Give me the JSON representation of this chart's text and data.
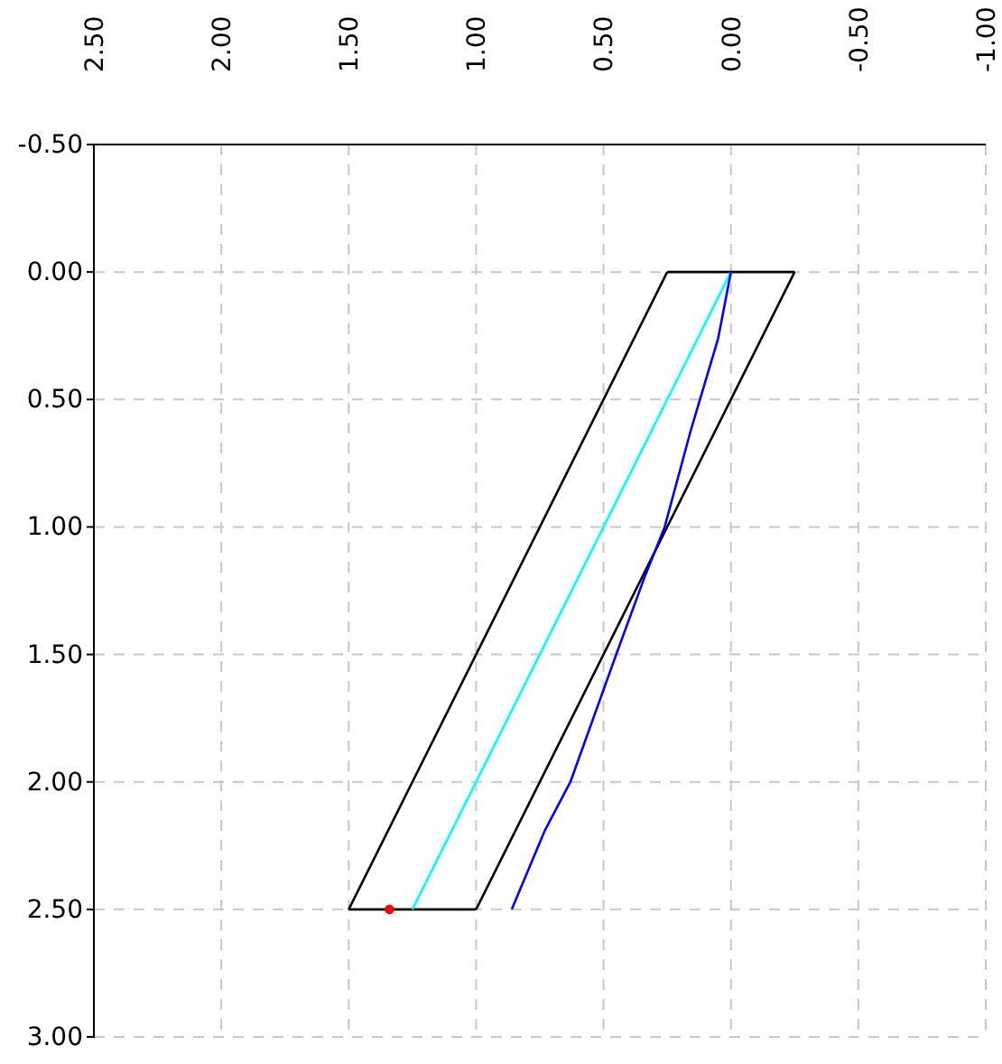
{
  "chart_data": {
    "type": "line",
    "xlim": [
      2.5,
      -1.0
    ],
    "xticks": [
      {
        "value": 2.5,
        "label": "2.50"
      },
      {
        "value": 2.0,
        "label": "2.00"
      },
      {
        "value": 1.5,
        "label": "1.50"
      },
      {
        "value": 1.0,
        "label": "1.00"
      },
      {
        "value": 0.5,
        "label": "0.50"
      },
      {
        "value": 0,
        "label": "0.00"
      },
      {
        "value": -0.5,
        "label": "-0.50"
      },
      {
        "value": -1.0,
        "label": "-1.00"
      }
    ],
    "ylim": [
      3.0,
      -0.5
    ],
    "yticks": [
      {
        "value": -0.5,
        "label": "-0.50"
      },
      {
        "value": 0,
        "label": "0.00"
      },
      {
        "value": 0.5,
        "label": "0.50"
      },
      {
        "value": 1.0,
        "label": "1.00"
      },
      {
        "value": 1.5,
        "label": "1.50"
      },
      {
        "value": 2.0,
        "label": "2.00"
      },
      {
        "value": 2.5,
        "label": "2.50"
      },
      {
        "value": 3.0,
        "label": "3.00"
      }
    ],
    "grid": true,
    "line_style": "solid",
    "marker": "none",
    "series": [
      {
        "color": "#000000",
        "x": [
          0.25,
          1.5
        ],
        "values": [
          0,
          2.5
        ]
      },
      {
        "color": "#000000",
        "x": [
          -0.25,
          1.0
        ],
        "values": [
          0,
          2.5
        ]
      },
      {
        "color": "#000000",
        "x": [
          -0.25,
          0.25
        ],
        "values": [
          0,
          0
        ]
      },
      {
        "color": "#000000",
        "x": [
          1.0,
          1.5
        ],
        "values": [
          2.5,
          2.5
        ]
      },
      {
        "color": "#00ffff",
        "x": [
          0,
          1.25
        ],
        "values": [
          0,
          2.5
        ]
      },
      {
        "color": "#0000ff",
        "x": [
          0,
          0.05,
          0.16,
          0.26,
          0.34,
          0.45,
          0.63,
          0.73,
          0.86
        ],
        "values": [
          0,
          0.26,
          0.63,
          1.0,
          1.2,
          1.5,
          2.0,
          2.19,
          2.5
        ]
      },
      {
        "type": "scatter",
        "marker": "circle",
        "color": "#ff0000",
        "x": [
          1.34
        ],
        "values": [
          2.5
        ]
      }
    ]
  }
}
